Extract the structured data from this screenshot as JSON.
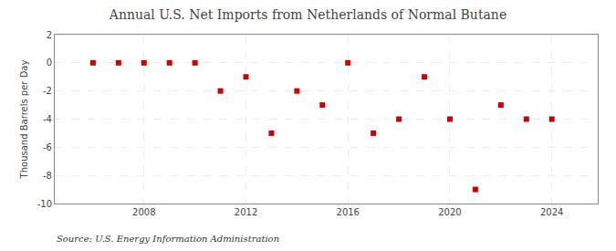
{
  "chart_data": {
    "type": "scatter",
    "title": "Annual U.S. Net Imports from Netherlands of Normal Butane",
    "ylabel": "Thousand Barrels per Day",
    "source": "Source: U.S. Energy Information Administration",
    "x": [
      2006,
      2007,
      2008,
      2009,
      2010,
      2011,
      2012,
      2013,
      2014,
      2015,
      2016,
      2017,
      2018,
      2019,
      2020,
      2021,
      2022,
      2023,
      2024
    ],
    "values": [
      0,
      0,
      0,
      0,
      0,
      -2,
      -1,
      -5,
      -2,
      -3,
      0,
      -5,
      -4,
      -1,
      -4,
      -9,
      -3,
      -4,
      -4
    ],
    "color": "#cc0000",
    "marker": "square",
    "xlim": [
      2004.5,
      2025.8
    ],
    "xticks": [
      2008,
      2012,
      2016,
      2020,
      2024
    ],
    "ylim": [
      -10,
      2
    ],
    "yticks": [
      2,
      0,
      -2,
      -4,
      -6,
      -8,
      -10
    ],
    "grid": true
  }
}
